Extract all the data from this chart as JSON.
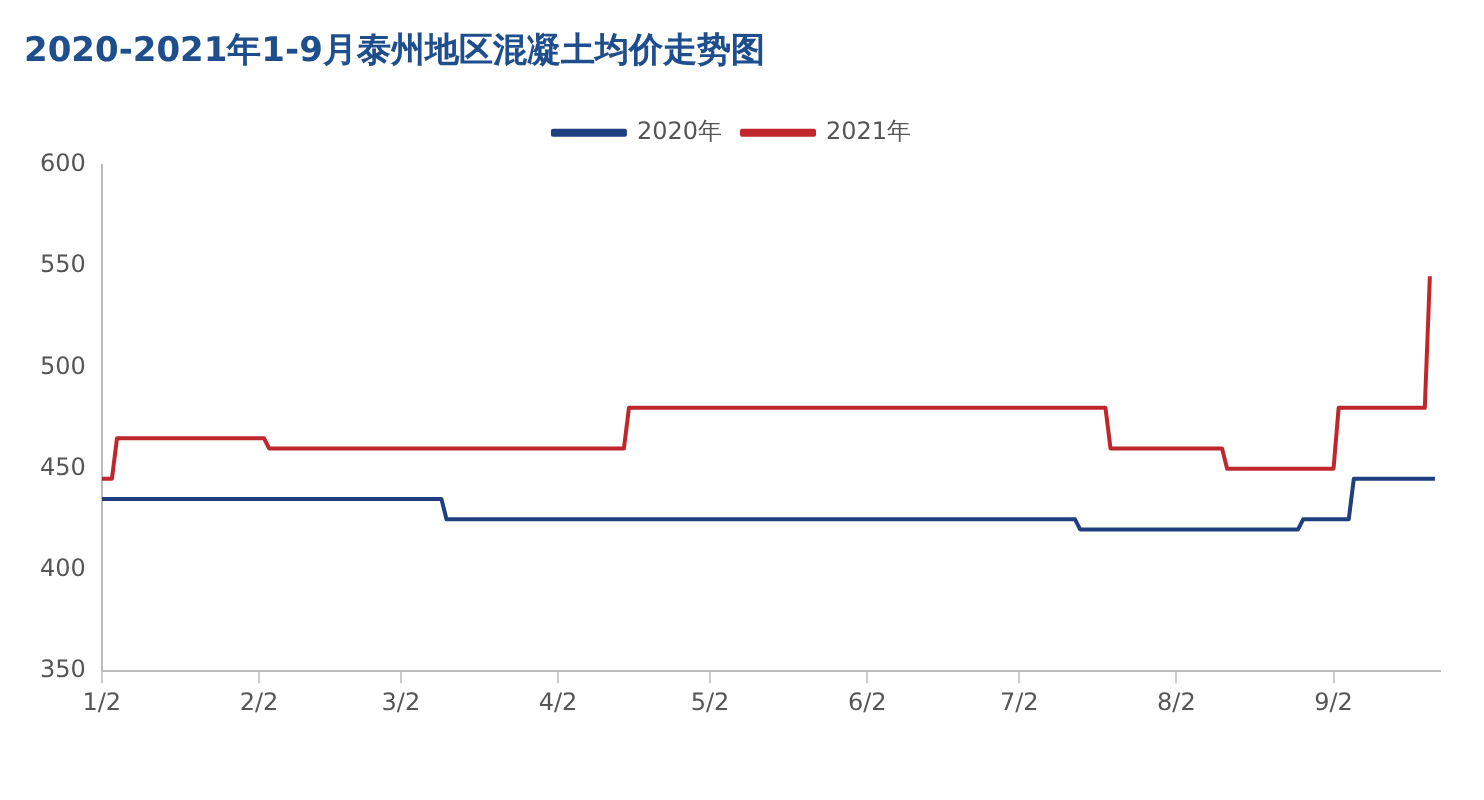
{
  "chart_data": {
    "type": "line",
    "title": "2020-2021年1-9月泰州地区混凝土均价走势图",
    "series": [
      {
        "name": "2020年",
        "color": "#1f3f7f",
        "x": [
          "--01-02",
          "--03-10",
          "--03-11",
          "--07-13",
          "--07-14",
          "--08-26",
          "--08-27",
          "--09-05",
          "--09-06",
          "--09-22"
        ],
        "values": [
          435,
          435,
          425,
          425,
          420,
          420,
          425,
          425,
          445,
          445
        ]
      },
      {
        "name": "2021年",
        "color": "#c0272d",
        "x": [
          "--01-02",
          "--01-04",
          "--01-05",
          "--02-03",
          "--02-04",
          "--04-15",
          "--04-16",
          "--07-19",
          "--07-20",
          "--08-11",
          "--08-12",
          "--09-02",
          "--09-03",
          "--09-20",
          "--09-21"
        ],
        "values": [
          445,
          445,
          465,
          465,
          460,
          460,
          480,
          480,
          460,
          460,
          450,
          450,
          480,
          480,
          545
        ]
      }
    ],
    "xlim": [
      "--01-02",
      "--09-23"
    ],
    "xticks": [
      {
        "value": "--01-02",
        "label": "1/2"
      },
      {
        "value": "--02-02",
        "label": "2/2"
      },
      {
        "value": "--03-02",
        "label": "3/2"
      },
      {
        "value": "--04-02",
        "label": "4/2"
      },
      {
        "value": "--05-02",
        "label": "5/2"
      },
      {
        "value": "--06-02",
        "label": "6/2"
      },
      {
        "value": "--07-02",
        "label": "7/2"
      },
      {
        "value": "--08-02",
        "label": "8/2"
      },
      {
        "value": "--09-02",
        "label": "9/2"
      }
    ],
    "ylim": [
      350,
      600
    ],
    "yticks": [
      350,
      400,
      450,
      500,
      550,
      600
    ],
    "legend": "top",
    "grid": false,
    "marker": "none",
    "line_style": "solid"
  }
}
